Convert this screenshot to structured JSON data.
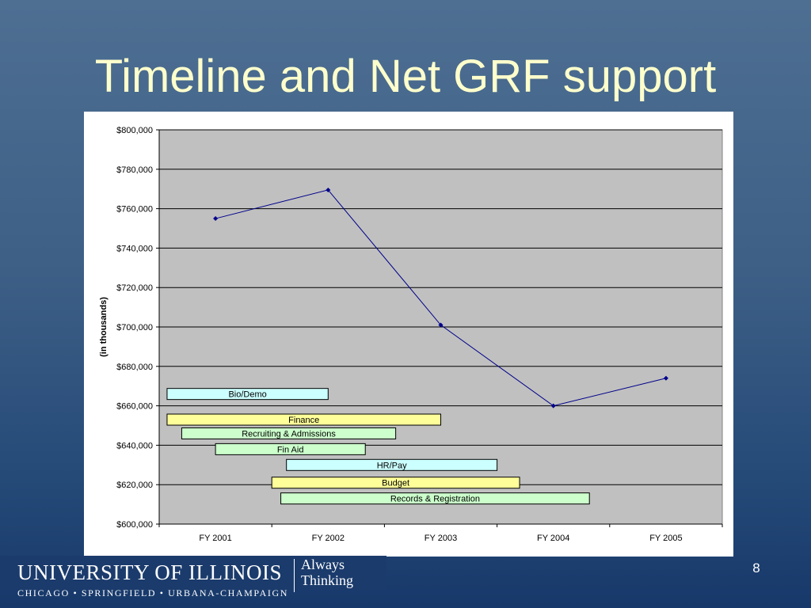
{
  "slide": {
    "title": "Timeline and Net GRF support",
    "page_number": "8"
  },
  "logo": {
    "university": "UNIVERSITY OF ILLINOIS",
    "campuses": "CHICAGO • SPRINGFIELD • URBANA-CHAMPAIGN",
    "tagline_line1": "Always",
    "tagline_line2": "Thinking"
  },
  "chart_data": {
    "type": "line",
    "title": "",
    "xlabel": "",
    "ylabel": "(in thousands)",
    "categories": [
      "FY 2001",
      "FY 2002",
      "FY 2003",
      "FY 2004",
      "FY 2005"
    ],
    "series": [
      {
        "values": [
          755000,
          769500,
          701000,
          660000,
          674000
        ],
        "color": "#00008b"
      }
    ],
    "ylim": [
      600000,
      800000
    ],
    "ytick_step": 20000,
    "y_ticks": [
      "$600,000",
      "$620,000",
      "$640,000",
      "$660,000",
      "$680,000",
      "$700,000",
      "$720,000",
      "$740,000",
      "$760,000",
      "$780,000",
      "$800,000"
    ],
    "grid": true,
    "plot_background": "#c0c0c0",
    "legend": "none",
    "timeline_bars": [
      {
        "label": "Bio/Demo",
        "start": 0.07,
        "end": 1.5,
        "color": "#ccffff",
        "y": 666000
      },
      {
        "label": "Finance",
        "start": 0.07,
        "end": 2.5,
        "color": "#ffff99",
        "y": 653000
      },
      {
        "label": "Recruiting & Admissions",
        "start": 0.2,
        "end": 2.1,
        "color": "#ccffcc",
        "y": 646000
      },
      {
        "label": "Fin Aid",
        "start": 0.5,
        "end": 1.83,
        "color": "#ccffcc",
        "y": 638000
      },
      {
        "label": "HR/Pay",
        "start": 1.13,
        "end": 3.0,
        "color": "#ccffff",
        "y": 630000
      },
      {
        "label": "Budget",
        "start": 1.0,
        "end": 3.2,
        "color": "#ffff99",
        "y": 621000
      },
      {
        "label": "Records & Registration",
        "start": 1.08,
        "end": 3.82,
        "color": "#ccffcc",
        "y": 613000
      }
    ]
  }
}
